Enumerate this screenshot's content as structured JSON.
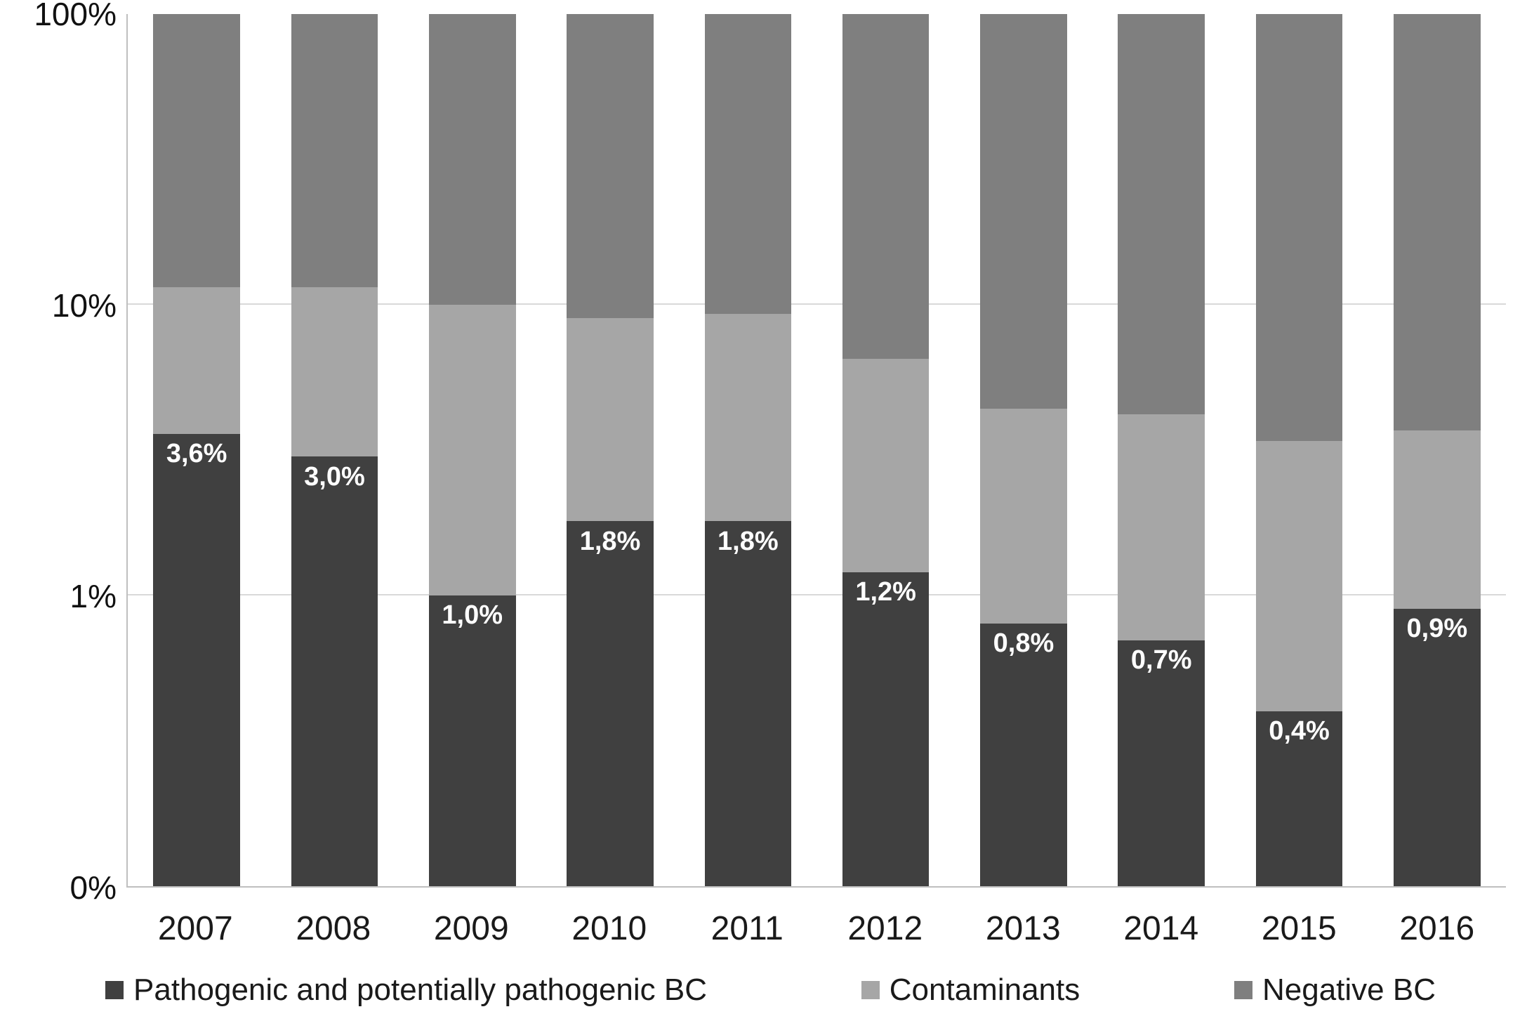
{
  "chart_data": {
    "type": "bar",
    "stacked": true,
    "percent_stacked": true,
    "title": "",
    "xlabel": "",
    "ylabel": "",
    "categories": [
      "2007",
      "2008",
      "2009",
      "2010",
      "2011",
      "2012",
      "2013",
      "2014",
      "2015",
      "2016"
    ],
    "series": [
      {
        "name": "Pathogenic and potentially pathogenic BC",
        "color": "#404040",
        "values": [
          3.6,
          3.0,
          1.0,
          1.8,
          1.8,
          1.2,
          0.8,
          0.7,
          0.4,
          0.9
        ],
        "data_labels": [
          "3,6%",
          "3,0%",
          "1,0%",
          "1,8%",
          "1,8%",
          "1,2%",
          "0,8%",
          "0,7%",
          "0,4%",
          "0,9%"
        ]
      },
      {
        "name": "Contaminants",
        "color": "#a6a6a6",
        "values": [
          7.9,
          8.5,
          9.0,
          7.2,
          7.5,
          5.3,
          3.6,
          3.5,
          3.0,
          2.8
        ]
      },
      {
        "name": "Negative BC",
        "color": "#7f7f7f",
        "values": [
          88.5,
          88.5,
          90.0,
          91.0,
          90.7,
          93.5,
          95.6,
          95.8,
          96.6,
          96.3
        ]
      }
    ],
    "y_axis": {
      "scale": "log",
      "min": 0.1,
      "max": 100,
      "ticks": [
        {
          "label": "0%",
          "value": 0.1
        },
        {
          "label": "1%",
          "value": 1
        },
        {
          "label": "10%",
          "value": 10
        },
        {
          "label": "100%",
          "value": 100
        }
      ]
    },
    "legend_position": "bottom",
    "grid": true
  },
  "colors": {
    "gridline": "#d9d9d9",
    "axis_line": "#bfbfbf",
    "data_label_text": "#ffffff",
    "tick_text": "#111111"
  }
}
